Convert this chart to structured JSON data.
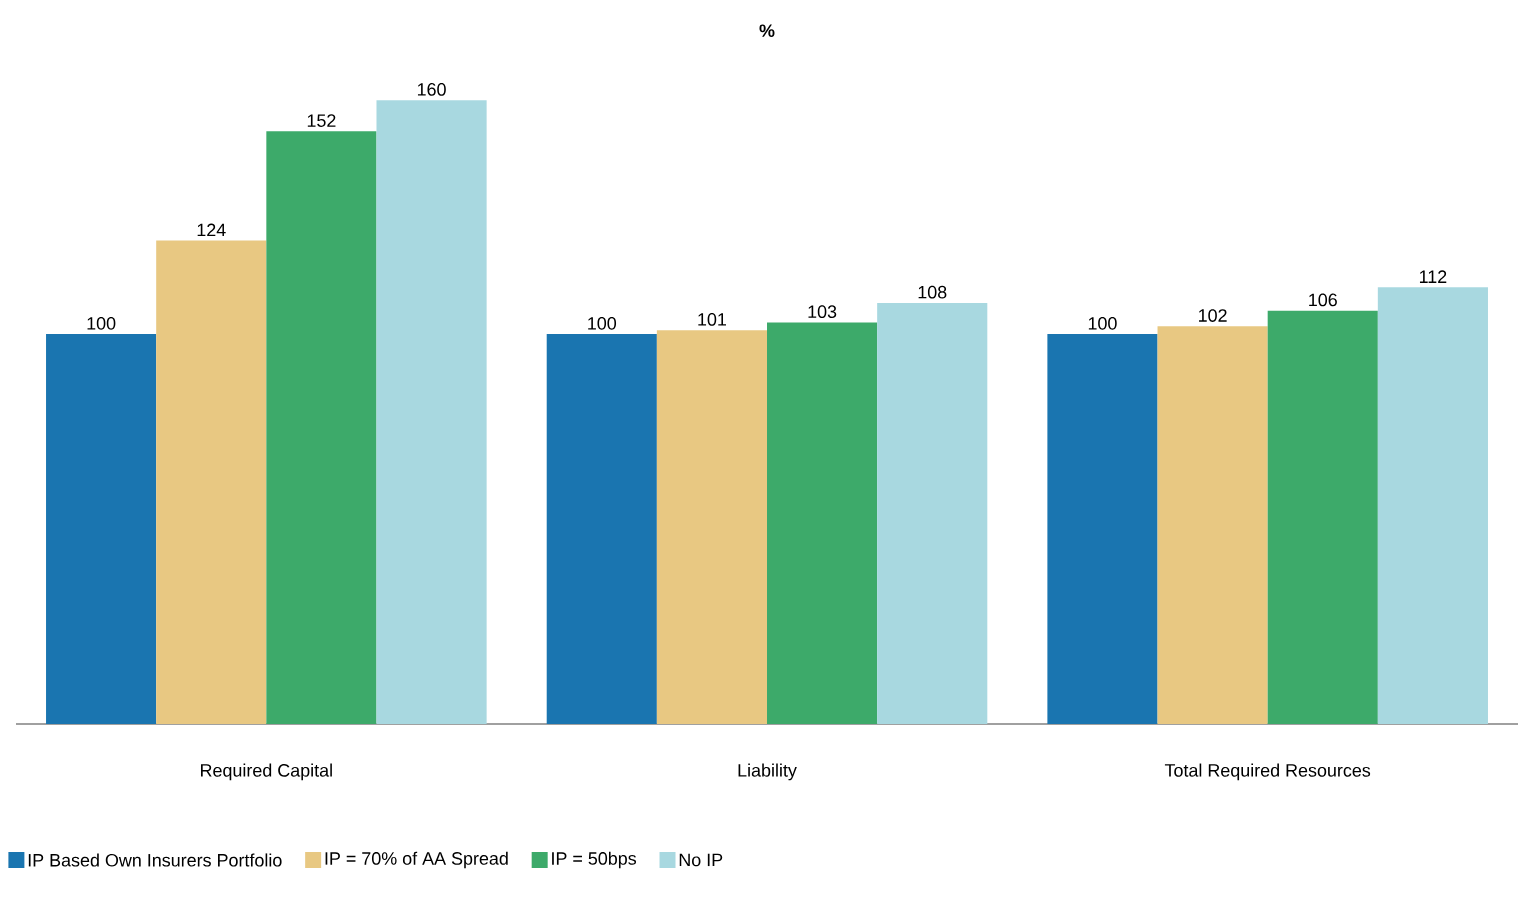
{
  "chart_data": {
    "type": "bar",
    "title": "%",
    "categories": [
      "Required Capital",
      "Liability",
      "Total Required Resources"
    ],
    "series": [
      {
        "name": "IP Based Own Insurers Portfolio",
        "color": "#1a75b0",
        "values": [
          100,
          100,
          100
        ]
      },
      {
        "name": "IP = 70% of AA Spread",
        "color": "#e8c882",
        "values": [
          124,
          101,
          102
        ]
      },
      {
        "name": "IP = 50bps",
        "color": "#3daa6a",
        "values": [
          152,
          103,
          106
        ]
      },
      {
        "name": "No IP",
        "color": "#a8d8e0",
        "values": [
          160,
          108,
          112
        ]
      }
    ],
    "data_labels": true,
    "legend": "bottom"
  }
}
